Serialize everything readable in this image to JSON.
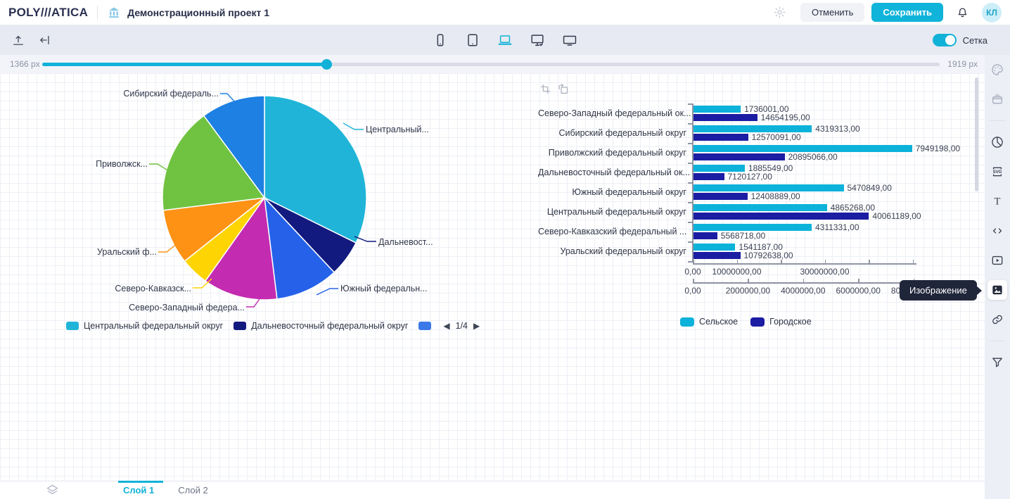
{
  "header": {
    "logo": "POLY///ATICA",
    "title": "Демонстрационный проект 1",
    "cancel_label": "Отменить",
    "save_label": "Сохранить",
    "avatar_initials": "КЛ"
  },
  "toolbar": {
    "grid_label": "Сетка",
    "devices": [
      "phone",
      "tablet",
      "laptop",
      "desktop-check",
      "tv"
    ],
    "selected_device": "laptop"
  },
  "slider": {
    "min_label": "1366 px",
    "max_label": "1919 px"
  },
  "canvas": {
    "tooltip_text": "Изображение"
  },
  "sidebar": {
    "items": [
      {
        "icon": "palette-icon",
        "dim": true
      },
      {
        "icon": "case-icon",
        "dim": true
      },
      {
        "type": "divider"
      },
      {
        "icon": "pie-chart-icon"
      },
      {
        "icon": "svg-icon"
      },
      {
        "icon": "text-icon"
      },
      {
        "icon": "code-icon"
      },
      {
        "icon": "video-icon"
      },
      {
        "icon": "image-icon",
        "selected": true
      },
      {
        "icon": "link-icon"
      },
      {
        "type": "divider"
      },
      {
        "icon": "filter-icon"
      }
    ]
  },
  "layers": {
    "tabs": [
      "Слой 1",
      "Слой 2"
    ],
    "active": "Слой 1"
  },
  "chart_data": [
    {
      "type": "pie",
      "title": "",
      "categories": [
        "Центральный федеральный округ",
        "Дальневосточный федеральный округ",
        "Южный федеральный округ",
        "Северо-Западный федеральный округ",
        "Северо-Кавказский федеральный округ",
        "Уральский федеральный округ",
        "Приволжский федеральный округ",
        "Сибирский федеральный округ"
      ],
      "values": [
        40061189,
        7120127,
        12408889,
        14654195,
        5568718,
        10792638,
        20895066,
        12570091
      ],
      "colors": [
        "#20b5d8",
        "#12197f",
        "#2562e9",
        "#c32bb1",
        "#ffd403",
        "#fd9214",
        "#70c341",
        "#1d80e2"
      ],
      "callout_labels": [
        "Центральный...",
        "Дальневост...",
        "Южный федеральн...",
        "Северо-Западный федера...",
        "Северо-Кавказск...",
        "Уральский ф...",
        "Приволжск...",
        "Сибирский федераль..."
      ],
      "legend": {
        "items": [
          {
            "label": "Центральный федеральный округ",
            "color": "#20b5d8"
          },
          {
            "label": "Дальневосточный федеральный округ",
            "color": "#12197f"
          },
          {
            "label": "",
            "color": "#3b78e8"
          }
        ],
        "pager": {
          "prev": "◀",
          "text": "1/4",
          "next": "▶"
        }
      }
    },
    {
      "type": "bar",
      "orientation": "horizontal",
      "categories": [
        "Северо-Западный федеральный ок...",
        "Сибирский федеральный округ",
        "Приволжский федеральный округ",
        "Дальневосточный федеральный ок...",
        "Южный федеральный округ",
        "Центральный федеральный округ",
        "Северо-Кавказский федеральный ...",
        "Уральский федеральный округ"
      ],
      "series": [
        {
          "name": "Сельское",
          "color": "#0cb2da",
          "axis": "bottom",
          "values": [
            1736001,
            4319313,
            7949198,
            1885549,
            5470849,
            4865268,
            4311331,
            1541187
          ]
        },
        {
          "name": "Городское",
          "color": "#1b1da3",
          "axis": "top",
          "values": [
            14654195,
            12570091,
            20895066,
            7120127,
            12408889,
            40061189,
            5568718,
            10792638
          ]
        }
      ],
      "value_label_suffix": ",00",
      "axes": {
        "top": {
          "max": 50560000,
          "ticks": [
            0,
            10000000,
            20000000,
            30000000,
            40000000,
            50000000
          ],
          "tick_labels": [
            "0,00",
            "10000000,00",
            "",
            "30000000,00",
            "",
            ""
          ]
        },
        "bottom": {
          "max": 8060000,
          "ticks": [
            0,
            2000000,
            4000000,
            6000000,
            8000000
          ],
          "tick_labels": [
            "0,00",
            "2000000,00",
            "4000000,00",
            "6000000,00",
            "8000000,00"
          ]
        }
      },
      "legend_position": "bottom"
    }
  ]
}
